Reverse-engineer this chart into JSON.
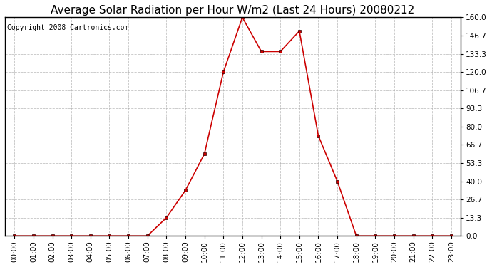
{
  "title": "Average Solar Radiation per Hour W/m2 (Last 24 Hours) 20080212",
  "copyright": "Copyright 2008 Cartronics.com",
  "x_labels": [
    "00:00",
    "01:00",
    "02:00",
    "03:00",
    "04:00",
    "05:00",
    "06:00",
    "07:00",
    "08:00",
    "09:00",
    "10:00",
    "11:00",
    "12:00",
    "13:00",
    "14:00",
    "15:00",
    "16:00",
    "17:00",
    "18:00",
    "19:00",
    "20:00",
    "21:00",
    "22:00",
    "23:00"
  ],
  "y_values": [
    0.0,
    0.0,
    0.0,
    0.0,
    0.0,
    0.0,
    0.0,
    0.0,
    13.3,
    33.3,
    60.0,
    120.0,
    160.0,
    135.0,
    135.0,
    150.0,
    73.3,
    40.0,
    0.0,
    0.0,
    0.0,
    0.0,
    0.0,
    0.0
  ],
  "yticks": [
    0.0,
    13.3,
    26.7,
    40.0,
    53.3,
    66.7,
    80.0,
    93.3,
    106.7,
    120.0,
    133.3,
    146.7,
    160.0
  ],
  "line_color": "#cc0000",
  "marker_color": "#cc0000",
  "bg_color": "#ffffff",
  "grid_color": "#aaaaaa",
  "title_fontsize": 11,
  "copyright_fontsize": 7,
  "tick_fontsize": 7.5,
  "ymax": 160.0,
  "ymin": 0.0
}
